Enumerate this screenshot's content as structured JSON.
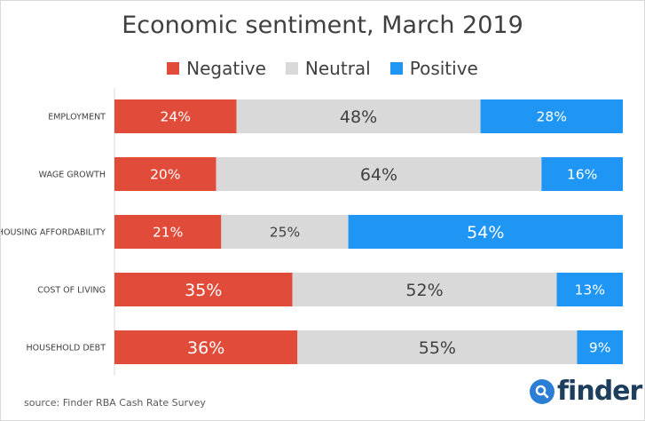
{
  "chart_data": {
    "type": "bar",
    "orientation": "horizontal",
    "stacked": true,
    "title": "Economic sentiment, March 2019",
    "categories": [
      "EMPLOYMENT",
      "WAGE GROWTH",
      "HOUSING AFFORDABILITY",
      "COST OF LIVING",
      "HOUSEHOLD DEBT"
    ],
    "series": [
      {
        "name": "Negative",
        "color": "#e04b3a",
        "values": [
          24,
          20,
          21,
          35,
          36
        ]
      },
      {
        "name": "Neutral",
        "color": "#d9d9d9",
        "values": [
          48,
          64,
          25,
          52,
          55
        ]
      },
      {
        "name": "Positive",
        "color": "#1f96f3",
        "values": [
          28,
          16,
          54,
          13,
          9
        ]
      }
    ],
    "value_suffix": "%",
    "xlim": [
      0,
      100
    ],
    "grid": false,
    "legend_position": "top"
  },
  "source": "source: Finder RBA Cash Rate Survey",
  "brand": {
    "name": "finder",
    "icon": "search-icon"
  }
}
